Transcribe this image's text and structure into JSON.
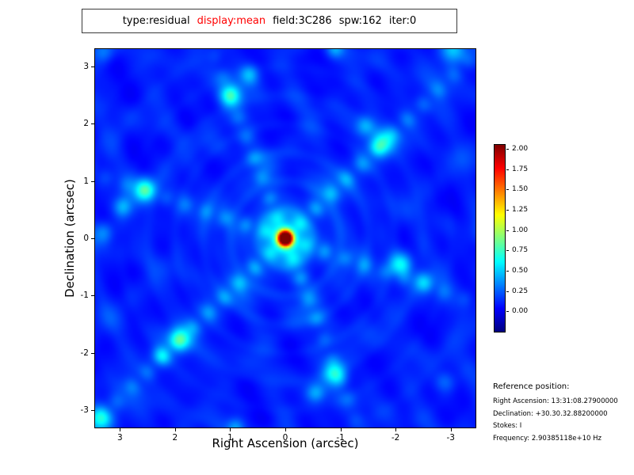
{
  "title_bar": {
    "segments": [
      {
        "text": "type:residual",
        "color": "#000000"
      },
      {
        "text": "display:mean",
        "color": "#ff0000"
      },
      {
        "text": "field:3C286",
        "color": "#000000"
      },
      {
        "text": "spw:162",
        "color": "#000000"
      },
      {
        "text": "iter:0",
        "color": "#000000"
      }
    ]
  },
  "plot": {
    "xlabel": "Right Ascension (arcsec)",
    "ylabel": "Declination (arcsec)"
  },
  "reference": {
    "heading": "Reference position:",
    "lines": [
      "Right Ascension: 13:31:08.27900000",
      "Declination: +30.30.32.88200000",
      "Stokes: I",
      "Frequency: 2.90385118e+10 Hz"
    ]
  },
  "chart_data": {
    "type": "heatmap",
    "title": "type:residual display:mean field:3C286 spw:162 iter:0",
    "xlabel": "Right Ascension (arcsec)",
    "ylabel": "Declination (arcsec)",
    "xlim": [
      3.45,
      -3.45
    ],
    "ylim": [
      -3.3,
      3.3
    ],
    "x_ticks": [
      3,
      2,
      1,
      0,
      -1,
      -2,
      -3
    ],
    "x_tick_labels": [
      "3",
      "2",
      "1",
      "0",
      "-1",
      "-2",
      "-3"
    ],
    "y_ticks": [
      -3,
      -2,
      -1,
      0,
      1,
      2,
      3
    ],
    "y_tick_labels": [
      "-3",
      "-2",
      "-1",
      "0",
      "1",
      "2",
      "3"
    ],
    "colormap": "jet",
    "vmin": -0.25,
    "vmax": 2.05,
    "colorbar_ticks": [
      2.0,
      1.75,
      1.5,
      1.25,
      1.0,
      0.75,
      0.5,
      0.25,
      0.0
    ],
    "colorbar_tick_labels": [
      "2.00",
      "1.75",
      "1.50",
      "1.25",
      "1.00",
      "0.75",
      "0.50",
      "0.25",
      "0.00"
    ],
    "background_level": 0.05,
    "peak_source": {
      "x": 0.0,
      "y": 0.0,
      "amplitude": 2.0,
      "sigma": 0.085,
      "halo_amplitude": 0.3,
      "halo_sigma": 0.22
    },
    "ripple": {
      "amp": 0.12,
      "period": 0.5,
      "decay": 1.8
    },
    "lattice": {
      "angles_deg": [
        68,
        18,
        137
      ],
      "spacing": 1.15,
      "amp": 0.05
    },
    "arms": [
      {
        "angle_deg": 68,
        "amp": 0.22,
        "width": 0.1,
        "bead_period": 0.38,
        "decay": 3.0
      },
      {
        "angle_deg": 18,
        "amp": 0.22,
        "width": 0.1,
        "bead_period": 0.38,
        "decay": 3.0
      },
      {
        "angle_deg": 137,
        "amp": 0.26,
        "width": 0.11,
        "bead_period": 0.38,
        "decay": 5.0
      }
    ],
    "sidelobe_blobs": [
      {
        "x": 1.0,
        "y": 2.5,
        "amp": 0.55,
        "sigma": 0.14
      },
      {
        "x": 0.65,
        "y": 2.85,
        "amp": 0.35,
        "sigma": 0.12
      },
      {
        "x": 2.55,
        "y": 0.85,
        "amp": 0.55,
        "sigma": 0.14
      },
      {
        "x": 2.95,
        "y": 0.55,
        "amp": 0.3,
        "sigma": 0.12
      },
      {
        "x": 3.3,
        "y": 0.1,
        "amp": 0.25,
        "sigma": 0.13
      },
      {
        "x": -1.75,
        "y": 1.65,
        "amp": 0.5,
        "sigma": 0.14
      },
      {
        "x": -1.45,
        "y": 1.95,
        "amp": 0.3,
        "sigma": 0.12
      },
      {
        "x": -2.1,
        "y": -0.45,
        "amp": 0.5,
        "sigma": 0.14
      },
      {
        "x": -2.5,
        "y": -0.75,
        "amp": 0.3,
        "sigma": 0.12
      },
      {
        "x": -0.9,
        "y": -2.35,
        "amp": 0.5,
        "sigma": 0.14
      },
      {
        "x": -0.55,
        "y": -2.7,
        "amp": 0.3,
        "sigma": 0.12
      },
      {
        "x": 1.9,
        "y": -1.75,
        "amp": 0.5,
        "sigma": 0.14
      },
      {
        "x": 2.25,
        "y": -2.05,
        "amp": 0.3,
        "sigma": 0.12
      },
      {
        "x": 3.35,
        "y": -3.15,
        "amp": 0.45,
        "sigma": 0.16
      },
      {
        "x": -3.05,
        "y": 3.3,
        "amp": 0.4,
        "sigma": 0.16
      },
      {
        "x": 3.3,
        "y": 3.25,
        "amp": 0.22,
        "sigma": 0.13
      },
      {
        "x": -2.9,
        "y": -2.5,
        "amp": 0.22,
        "sigma": 0.13
      },
      {
        "x": -0.9,
        "y": 3.3,
        "amp": 0.28,
        "sigma": 0.11
      },
      {
        "x": 0.9,
        "y": -3.3,
        "amp": 0.28,
        "sigma": 0.11
      }
    ]
  }
}
